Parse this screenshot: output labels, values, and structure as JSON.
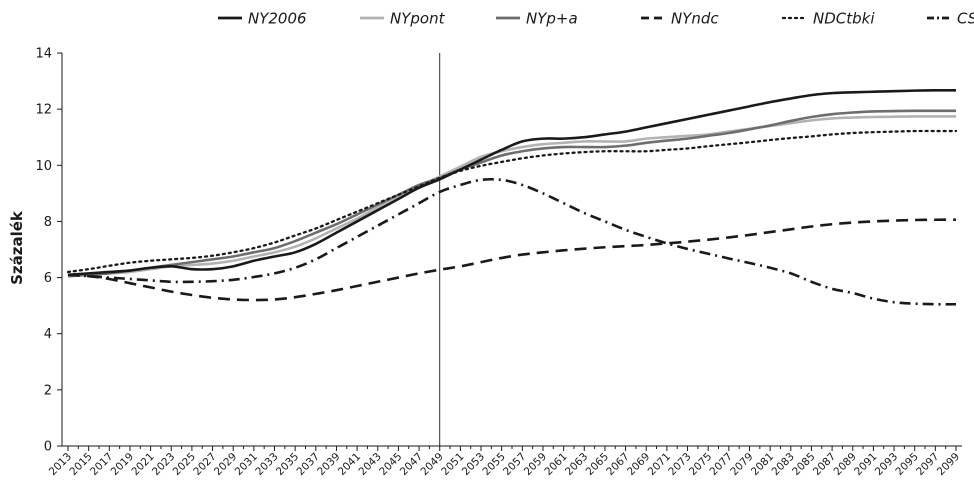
{
  "chart_data": {
    "type": "line",
    "title": "",
    "xlabel": "",
    "ylabel": "Százalék",
    "ylim": [
      0,
      14
    ],
    "yticks": [
      0,
      2,
      4,
      6,
      8,
      10,
      12,
      14
    ],
    "grid": false,
    "legend_position": "top",
    "vertical_marker_year": 2049,
    "x_tick_labels": [
      "2013",
      "2015",
      "2017",
      "2019",
      "2021",
      "2023",
      "2025",
      "2027",
      "2029",
      "2031",
      "2033",
      "2035",
      "2037",
      "2039",
      "2041",
      "2043",
      "2045",
      "2047",
      "2049",
      "2051",
      "2053",
      "2055",
      "2057",
      "2059",
      "2061",
      "2063",
      "2065",
      "2067",
      "2069",
      "2071",
      "2073",
      "2075",
      "2077",
      "2079",
      "2081",
      "2083",
      "2085",
      "2087",
      "2089",
      "2091",
      "2093",
      "2095",
      "2097",
      "2099"
    ],
    "series": [
      {
        "name": "NY2006",
        "color": "#1a1a1a",
        "dash": "solid",
        "points": [
          [
            2013,
            6.1
          ],
          [
            2015,
            6.15
          ],
          [
            2017,
            6.2
          ],
          [
            2019,
            6.25
          ],
          [
            2021,
            6.35
          ],
          [
            2023,
            6.4
          ],
          [
            2025,
            6.3
          ],
          [
            2027,
            6.3
          ],
          [
            2029,
            6.4
          ],
          [
            2031,
            6.6
          ],
          [
            2033,
            6.75
          ],
          [
            2035,
            6.9
          ],
          [
            2037,
            7.2
          ],
          [
            2039,
            7.6
          ],
          [
            2041,
            8.0
          ],
          [
            2043,
            8.4
          ],
          [
            2045,
            8.8
          ],
          [
            2047,
            9.2
          ],
          [
            2049,
            9.5
          ],
          [
            2051,
            9.85
          ],
          [
            2053,
            10.2
          ],
          [
            2055,
            10.55
          ],
          [
            2057,
            10.85
          ],
          [
            2059,
            10.95
          ],
          [
            2061,
            10.95
          ],
          [
            2063,
            11.0
          ],
          [
            2065,
            11.1
          ],
          [
            2067,
            11.2
          ],
          [
            2069,
            11.35
          ],
          [
            2071,
            11.5
          ],
          [
            2073,
            11.65
          ],
          [
            2075,
            11.8
          ],
          [
            2077,
            11.95
          ],
          [
            2079,
            12.1
          ],
          [
            2081,
            12.25
          ],
          [
            2083,
            12.38
          ],
          [
            2085,
            12.5
          ],
          [
            2087,
            12.57
          ],
          [
            2089,
            12.6
          ],
          [
            2091,
            12.62
          ],
          [
            2093,
            12.64
          ],
          [
            2095,
            12.66
          ],
          [
            2097,
            12.67
          ],
          [
            2099,
            12.67
          ]
        ]
      },
      {
        "name": "NYpont",
        "color": "#b3b3b3",
        "dash": "solid",
        "points": [
          [
            2013,
            6.05
          ],
          [
            2015,
            6.1
          ],
          [
            2017,
            6.15
          ],
          [
            2019,
            6.2
          ],
          [
            2021,
            6.3
          ],
          [
            2023,
            6.4
          ],
          [
            2025,
            6.45
          ],
          [
            2027,
            6.5
          ],
          [
            2029,
            6.6
          ],
          [
            2031,
            6.75
          ],
          [
            2033,
            6.9
          ],
          [
            2035,
            7.1
          ],
          [
            2037,
            7.4
          ],
          [
            2039,
            7.75
          ],
          [
            2041,
            8.1
          ],
          [
            2043,
            8.5
          ],
          [
            2045,
            8.9
          ],
          [
            2047,
            9.25
          ],
          [
            2049,
            9.6
          ],
          [
            2051,
            9.95
          ],
          [
            2053,
            10.3
          ],
          [
            2055,
            10.5
          ],
          [
            2057,
            10.65
          ],
          [
            2059,
            10.75
          ],
          [
            2061,
            10.8
          ],
          [
            2063,
            10.85
          ],
          [
            2065,
            10.85
          ],
          [
            2067,
            10.85
          ],
          [
            2069,
            10.95
          ],
          [
            2071,
            11.0
          ],
          [
            2073,
            11.05
          ],
          [
            2075,
            11.1
          ],
          [
            2077,
            11.2
          ],
          [
            2079,
            11.3
          ],
          [
            2081,
            11.4
          ],
          [
            2083,
            11.5
          ],
          [
            2085,
            11.6
          ],
          [
            2087,
            11.67
          ],
          [
            2089,
            11.7
          ],
          [
            2091,
            11.72
          ],
          [
            2093,
            11.73
          ],
          [
            2095,
            11.74
          ],
          [
            2097,
            11.74
          ],
          [
            2099,
            11.74
          ]
        ]
      },
      {
        "name": "NYp+a",
        "color": "#6e6e6e",
        "dash": "solid",
        "points": [
          [
            2013,
            6.05
          ],
          [
            2015,
            6.1
          ],
          [
            2017,
            6.15
          ],
          [
            2019,
            6.25
          ],
          [
            2021,
            6.35
          ],
          [
            2023,
            6.45
          ],
          [
            2025,
            6.55
          ],
          [
            2027,
            6.65
          ],
          [
            2029,
            6.75
          ],
          [
            2031,
            6.9
          ],
          [
            2033,
            7.05
          ],
          [
            2035,
            7.3
          ],
          [
            2037,
            7.6
          ],
          [
            2039,
            7.9
          ],
          [
            2041,
            8.25
          ],
          [
            2043,
            8.6
          ],
          [
            2045,
            8.95
          ],
          [
            2047,
            9.3
          ],
          [
            2049,
            9.55
          ],
          [
            2051,
            9.85
          ],
          [
            2053,
            10.1
          ],
          [
            2055,
            10.35
          ],
          [
            2057,
            10.5
          ],
          [
            2059,
            10.6
          ],
          [
            2061,
            10.65
          ],
          [
            2063,
            10.65
          ],
          [
            2065,
            10.65
          ],
          [
            2067,
            10.7
          ],
          [
            2069,
            10.8
          ],
          [
            2071,
            10.88
          ],
          [
            2073,
            10.95
          ],
          [
            2075,
            11.05
          ],
          [
            2077,
            11.15
          ],
          [
            2079,
            11.28
          ],
          [
            2081,
            11.42
          ],
          [
            2083,
            11.58
          ],
          [
            2085,
            11.72
          ],
          [
            2087,
            11.82
          ],
          [
            2089,
            11.88
          ],
          [
            2091,
            11.92
          ],
          [
            2093,
            11.93
          ],
          [
            2095,
            11.94
          ],
          [
            2097,
            11.94
          ],
          [
            2099,
            11.94
          ]
        ]
      },
      {
        "name": "NYndc",
        "color": "#1a1a1a",
        "dash": "long-dash",
        "points": [
          [
            2013,
            6.1
          ],
          [
            2015,
            6.05
          ],
          [
            2017,
            5.95
          ],
          [
            2019,
            5.8
          ],
          [
            2021,
            5.65
          ],
          [
            2023,
            5.5
          ],
          [
            2025,
            5.38
          ],
          [
            2027,
            5.28
          ],
          [
            2029,
            5.22
          ],
          [
            2031,
            5.2
          ],
          [
            2033,
            5.22
          ],
          [
            2035,
            5.3
          ],
          [
            2037,
            5.42
          ],
          [
            2039,
            5.55
          ],
          [
            2041,
            5.7
          ],
          [
            2043,
            5.85
          ],
          [
            2045,
            6.0
          ],
          [
            2047,
            6.15
          ],
          [
            2049,
            6.28
          ],
          [
            2051,
            6.4
          ],
          [
            2053,
            6.55
          ],
          [
            2055,
            6.7
          ],
          [
            2057,
            6.82
          ],
          [
            2059,
            6.9
          ],
          [
            2061,
            6.97
          ],
          [
            2063,
            7.03
          ],
          [
            2065,
            7.08
          ],
          [
            2067,
            7.12
          ],
          [
            2069,
            7.16
          ],
          [
            2071,
            7.22
          ],
          [
            2073,
            7.28
          ],
          [
            2075,
            7.35
          ],
          [
            2077,
            7.43
          ],
          [
            2079,
            7.52
          ],
          [
            2081,
            7.62
          ],
          [
            2083,
            7.72
          ],
          [
            2085,
            7.82
          ],
          [
            2087,
            7.9
          ],
          [
            2089,
            7.96
          ],
          [
            2091,
            8.0
          ],
          [
            2093,
            8.03
          ],
          [
            2095,
            8.05
          ],
          [
            2097,
            8.06
          ],
          [
            2099,
            8.06
          ]
        ]
      },
      {
        "name": "NDCtbki",
        "color": "#1a1a1a",
        "dash": "dotted",
        "points": [
          [
            2013,
            6.2
          ],
          [
            2015,
            6.3
          ],
          [
            2017,
            6.42
          ],
          [
            2019,
            6.53
          ],
          [
            2021,
            6.6
          ],
          [
            2023,
            6.65
          ],
          [
            2025,
            6.7
          ],
          [
            2027,
            6.78
          ],
          [
            2029,
            6.9
          ],
          [
            2031,
            7.05
          ],
          [
            2033,
            7.25
          ],
          [
            2035,
            7.5
          ],
          [
            2037,
            7.75
          ],
          [
            2039,
            8.05
          ],
          [
            2041,
            8.35
          ],
          [
            2043,
            8.65
          ],
          [
            2045,
            8.95
          ],
          [
            2047,
            9.25
          ],
          [
            2049,
            9.55
          ],
          [
            2051,
            9.8
          ],
          [
            2053,
            9.98
          ],
          [
            2055,
            10.12
          ],
          [
            2057,
            10.25
          ],
          [
            2059,
            10.35
          ],
          [
            2061,
            10.42
          ],
          [
            2063,
            10.47
          ],
          [
            2065,
            10.5
          ],
          [
            2067,
            10.5
          ],
          [
            2069,
            10.5
          ],
          [
            2071,
            10.55
          ],
          [
            2073,
            10.6
          ],
          [
            2075,
            10.68
          ],
          [
            2077,
            10.75
          ],
          [
            2079,
            10.82
          ],
          [
            2081,
            10.9
          ],
          [
            2083,
            10.97
          ],
          [
            2085,
            11.03
          ],
          [
            2087,
            11.1
          ],
          [
            2089,
            11.15
          ],
          [
            2091,
            11.18
          ],
          [
            2093,
            11.2
          ],
          [
            2095,
            11.22
          ],
          [
            2097,
            11.22
          ],
          [
            2099,
            11.22
          ]
        ]
      },
      {
        "name": "CSAKa",
        "color": "#1a1a1a",
        "dash": "dash-dot",
        "points": [
          [
            2013,
            6.1
          ],
          [
            2015,
            6.05
          ],
          [
            2017,
            6.0
          ],
          [
            2019,
            5.95
          ],
          [
            2021,
            5.9
          ],
          [
            2023,
            5.85
          ],
          [
            2025,
            5.85
          ],
          [
            2027,
            5.87
          ],
          [
            2029,
            5.92
          ],
          [
            2031,
            6.02
          ],
          [
            2033,
            6.15
          ],
          [
            2035,
            6.35
          ],
          [
            2037,
            6.65
          ],
          [
            2039,
            7.05
          ],
          [
            2041,
            7.45
          ],
          [
            2043,
            7.85
          ],
          [
            2045,
            8.25
          ],
          [
            2047,
            8.65
          ],
          [
            2049,
            9.05
          ],
          [
            2051,
            9.3
          ],
          [
            2053,
            9.48
          ],
          [
            2055,
            9.48
          ],
          [
            2057,
            9.3
          ],
          [
            2059,
            9.0
          ],
          [
            2061,
            8.65
          ],
          [
            2063,
            8.3
          ],
          [
            2065,
            8.0
          ],
          [
            2067,
            7.7
          ],
          [
            2069,
            7.45
          ],
          [
            2071,
            7.22
          ],
          [
            2073,
            7.02
          ],
          [
            2075,
            6.85
          ],
          [
            2077,
            6.68
          ],
          [
            2079,
            6.52
          ],
          [
            2081,
            6.35
          ],
          [
            2083,
            6.15
          ],
          [
            2085,
            5.85
          ],
          [
            2087,
            5.6
          ],
          [
            2089,
            5.45
          ],
          [
            2091,
            5.25
          ],
          [
            2093,
            5.12
          ],
          [
            2095,
            5.07
          ],
          [
            2097,
            5.05
          ],
          [
            2099,
            5.05
          ]
        ]
      }
    ]
  }
}
